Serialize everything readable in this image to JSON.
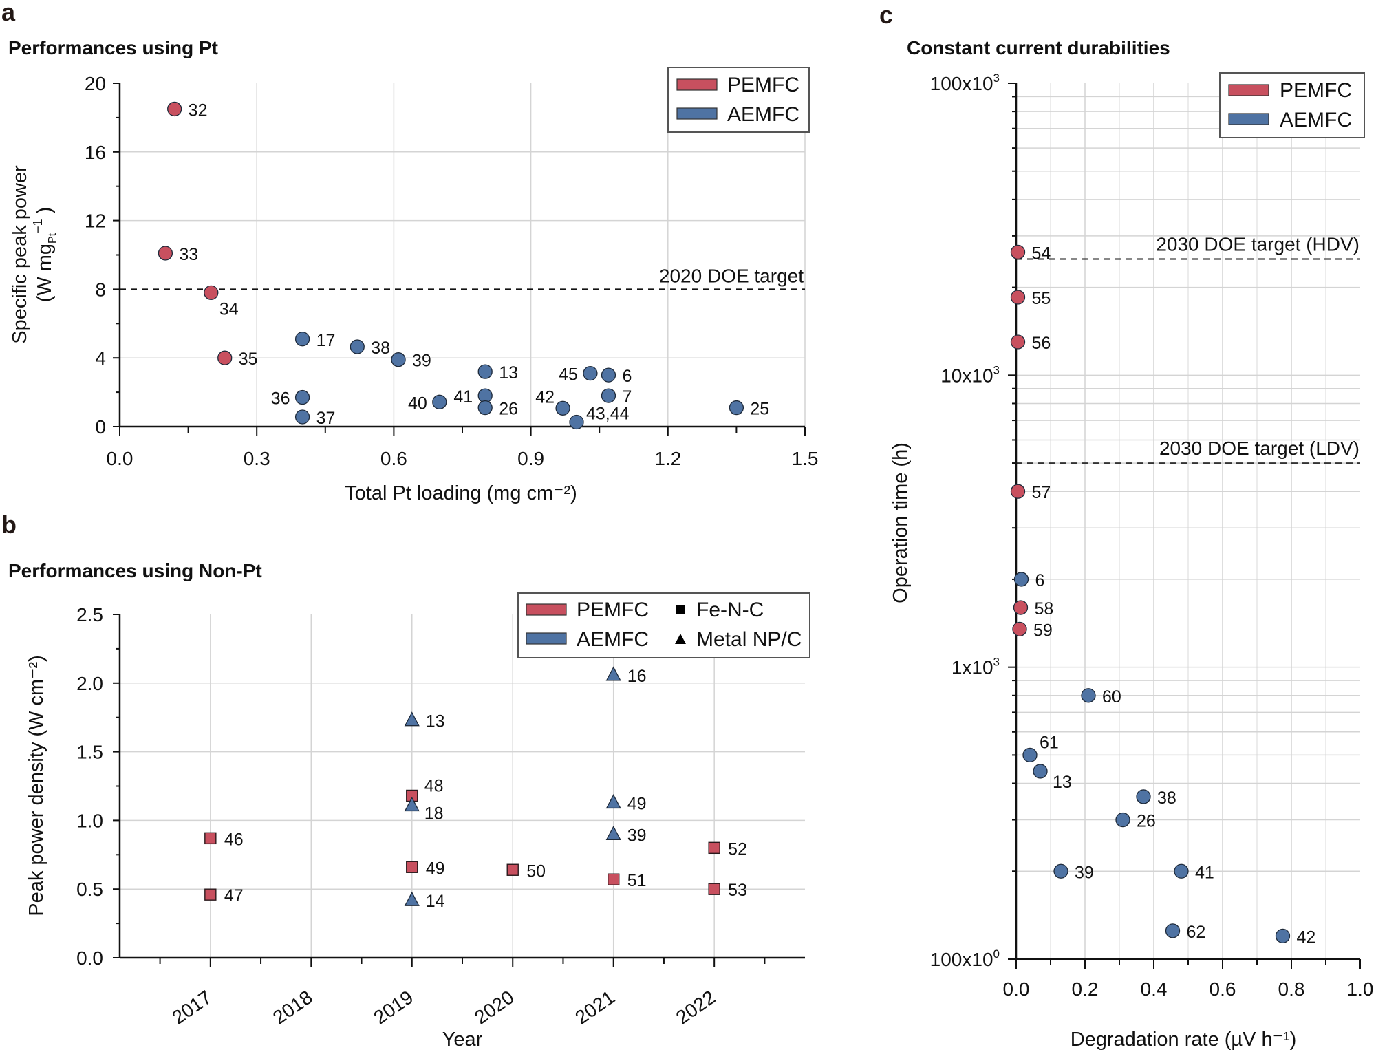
{
  "figure": {
    "colors": {
      "PEMFC": "#c8505f",
      "AEMFC": "#4f73a3",
      "marker_edge": "#1e2a3a"
    }
  },
  "chart_data": [
    {
      "panel": "a",
      "type": "scatter",
      "title": "Performances using Pt",
      "xlabel": "Total Pt loading (mg cm⁻²)",
      "ylabel_line1": "Specific peak power",
      "ylabel_line2": "(W mg",
      "ylabel_sub": "Pt",
      "ylabel_sup": "−1",
      "ylabel_close": ")",
      "xlim": [
        0,
        1.5
      ],
      "ylim": [
        0,
        20
      ],
      "xticks": [
        "0.0",
        "0.3",
        "0.6",
        "0.9",
        "1.2",
        "1.5"
      ],
      "xtick_values": [
        0,
        0.3,
        0.6,
        0.9,
        1.2,
        1.5
      ],
      "yticks": [
        "0",
        "4",
        "8",
        "12",
        "16",
        "20"
      ],
      "ytick_values": [
        0,
        4,
        8,
        12,
        16,
        20
      ],
      "grid": true,
      "legend": {
        "placement": "top-right",
        "entries": [
          "PEMFC",
          "AEMFC"
        ]
      },
      "reference_line": {
        "y": 8,
        "label": "2020 DOE target",
        "style": "dashed"
      },
      "series": [
        {
          "name": "PEMFC",
          "points": [
            {
              "x": 0.12,
              "y": 18.5,
              "label": "32",
              "lpos": "r"
            },
            {
              "x": 0.1,
              "y": 10.1,
              "label": "33",
              "lpos": "r"
            },
            {
              "x": 0.2,
              "y": 7.8,
              "label": "34",
              "lpos": "br"
            },
            {
              "x": 0.23,
              "y": 4.0,
              "label": "35",
              "lpos": "r"
            }
          ]
        },
        {
          "name": "AEMFC",
          "points": [
            {
              "x": 0.4,
              "y": 5.1,
              "label": "17",
              "lpos": "r"
            },
            {
              "x": 0.52,
              "y": 4.65,
              "label": "38",
              "lpos": "r"
            },
            {
              "x": 0.61,
              "y": 3.9,
              "label": "39",
              "lpos": "r"
            },
            {
              "x": 0.4,
              "y": 1.7,
              "label": "36",
              "lpos": "l"
            },
            {
              "x": 0.4,
              "y": 0.56,
              "label": "37",
              "lpos": "r"
            },
            {
              "x": 0.7,
              "y": 1.43,
              "label": "40",
              "lpos": "l"
            },
            {
              "x": 0.8,
              "y": 1.8,
              "label": "41",
              "lpos": "l"
            },
            {
              "x": 0.8,
              "y": 1.1,
              "label": "26",
              "lpos": "r"
            },
            {
              "x": 0.8,
              "y": 3.2,
              "label": "13",
              "lpos": "r"
            },
            {
              "x": 1.03,
              "y": 3.1,
              "label": "45",
              "lpos": "l"
            },
            {
              "x": 1.07,
              "y": 3.0,
              "label": "6",
              "lpos": "r"
            },
            {
              "x": 1.07,
              "y": 1.8,
              "label": "7",
              "lpos": "r"
            },
            {
              "x": 0.97,
              "y": 1.07,
              "label": "42",
              "lpos": "tl"
            },
            {
              "x": 1.0,
              "y": 0.26,
              "label": "43,44",
              "lpos": "tr"
            },
            {
              "x": 1.35,
              "y": 1.1,
              "label": "25",
              "lpos": "r"
            }
          ]
        }
      ]
    },
    {
      "panel": "b",
      "type": "scatter",
      "title": "Performances using Non-Pt",
      "xlabel": "Year",
      "ylabel": "Peak power density (W cm⁻²)",
      "xlim": [
        2016.1,
        2022.9
      ],
      "ylim": [
        0,
        2.5
      ],
      "xticks": [
        "2017",
        "2018",
        "2019",
        "2020",
        "2021",
        "2022"
      ],
      "xtick_values": [
        2017,
        2018,
        2019,
        2020,
        2021,
        2022
      ],
      "yticks": [
        "0.0",
        "0.5",
        "1.0",
        "1.5",
        "2.0",
        "2.5"
      ],
      "ytick_values": [
        0,
        0.5,
        1.0,
        1.5,
        2.0,
        2.5
      ],
      "grid": true,
      "legend": {
        "placement": "top-right",
        "entries": [
          "PEMFC",
          "AEMFC",
          "Fe-N-C",
          "Metal NP/C"
        ]
      },
      "series": [
        {
          "name": "PEMFC",
          "marker": "square",
          "catalyst": "Fe-N-C",
          "points": [
            {
              "x": 2017,
              "y": 0.87,
              "label": "46"
            },
            {
              "x": 2017,
              "y": 0.46,
              "label": "47"
            },
            {
              "x": 2019,
              "y": 1.18,
              "label": "48",
              "lpos": "tr"
            },
            {
              "x": 2019,
              "y": 0.66,
              "label": "49"
            },
            {
              "x": 2020,
              "y": 0.64,
              "label": "50"
            },
            {
              "x": 2021,
              "y": 0.57,
              "label": "51"
            },
            {
              "x": 2022,
              "y": 0.8,
              "label": "52"
            },
            {
              "x": 2022,
              "y": 0.5,
              "label": "53"
            }
          ]
        },
        {
          "name": "AEMFC",
          "marker": "triangle",
          "catalyst": "Metal NP/C",
          "points": [
            {
              "x": 2019,
              "y": 1.73,
              "label": "13"
            },
            {
              "x": 2019,
              "y": 1.11,
              "label": "18",
              "lpos": "br"
            },
            {
              "x": 2019,
              "y": 0.42,
              "label": "14"
            },
            {
              "x": 2021,
              "y": 2.06,
              "label": "16"
            },
            {
              "x": 2021,
              "y": 1.13,
              "label": "49"
            },
            {
              "x": 2021,
              "y": 0.9,
              "label": "39"
            }
          ]
        }
      ]
    },
    {
      "panel": "c",
      "type": "scatter",
      "title": "Constant current durabilities",
      "xlabel": "Degradation rate (µV h⁻¹)",
      "ylabel": "Operation time (h)",
      "xlim": [
        0,
        1.0
      ],
      "ylim": [
        100,
        100000
      ],
      "yscale": "log",
      "xticks": [
        "0.0",
        "0.2",
        "0.4",
        "0.6",
        "0.8",
        "1.0"
      ],
      "xtick_values": [
        0,
        0.2,
        0.4,
        0.6,
        0.8,
        1.0
      ],
      "yticks": [
        {
          "base": "100x10",
          "exp": "0",
          "value": 100
        },
        {
          "base": "1x10",
          "exp": "3",
          "value": 1000
        },
        {
          "base": "10x10",
          "exp": "3",
          "value": 10000
        },
        {
          "base": "100x10",
          "exp": "3",
          "value": 100000
        }
      ],
      "grid": true,
      "legend": {
        "placement": "top-right",
        "entries": [
          "PEMFC",
          "AEMFC"
        ]
      },
      "reference_lines": [
        {
          "y": 25000,
          "label": "2030 DOE target (HDV)",
          "style": "dashed"
        },
        {
          "y": 5000,
          "label": "2030 DOE target (LDV)",
          "style": "dashed"
        }
      ],
      "series": [
        {
          "name": "PEMFC",
          "points": [
            {
              "x": 0.005,
              "y": 26400,
              "label": "54"
            },
            {
              "x": 0.005,
              "y": 18500,
              "label": "55"
            },
            {
              "x": 0.005,
              "y": 13000,
              "label": "56"
            },
            {
              "x": 0.005,
              "y": 4000,
              "label": "57"
            },
            {
              "x": 0.013,
              "y": 1600,
              "label": "58"
            },
            {
              "x": 0.01,
              "y": 1350,
              "label": "59"
            }
          ]
        },
        {
          "name": "AEMFC",
          "points": [
            {
              "x": 0.015,
              "y": 2000,
              "label": "6"
            },
            {
              "x": 0.21,
              "y": 800,
              "label": "60"
            },
            {
              "x": 0.04,
              "y": 500,
              "label": "61",
              "lpos": "tr"
            },
            {
              "x": 0.07,
              "y": 440,
              "label": "13",
              "lpos": "br"
            },
            {
              "x": 0.37,
              "y": 360,
              "label": "38"
            },
            {
              "x": 0.31,
              "y": 300,
              "label": "26"
            },
            {
              "x": 0.13,
              "y": 200,
              "label": "39"
            },
            {
              "x": 0.48,
              "y": 200,
              "label": "41"
            },
            {
              "x": 0.455,
              "y": 125,
              "label": "62"
            },
            {
              "x": 0.775,
              "y": 120,
              "label": "42"
            }
          ]
        }
      ]
    }
  ],
  "panels": {
    "a": {
      "letter": "a",
      "title": "Performances using Pt"
    },
    "b": {
      "letter": "b",
      "title": "Performances using Non-Pt"
    },
    "c": {
      "letter": "c",
      "title": "Constant current durabilities"
    }
  }
}
